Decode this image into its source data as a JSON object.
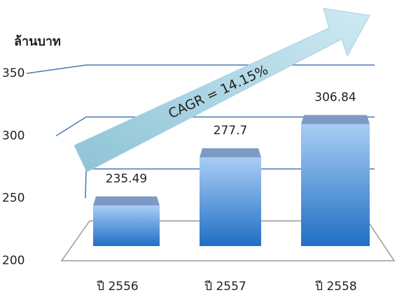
{
  "chart_data": {
    "type": "bar",
    "y_axis_label": "ล้านบาท",
    "categories": [
      "ปี 2556",
      "ปี 2557",
      "ปี 2558"
    ],
    "values": [
      235.49,
      277.7,
      306.84
    ],
    "color": "#4a8fd8",
    "ylim": [
      200,
      350
    ],
    "yticks": [
      200,
      250,
      300,
      350
    ],
    "grid": true,
    "annotation": "CAGR = 14.15%"
  }
}
